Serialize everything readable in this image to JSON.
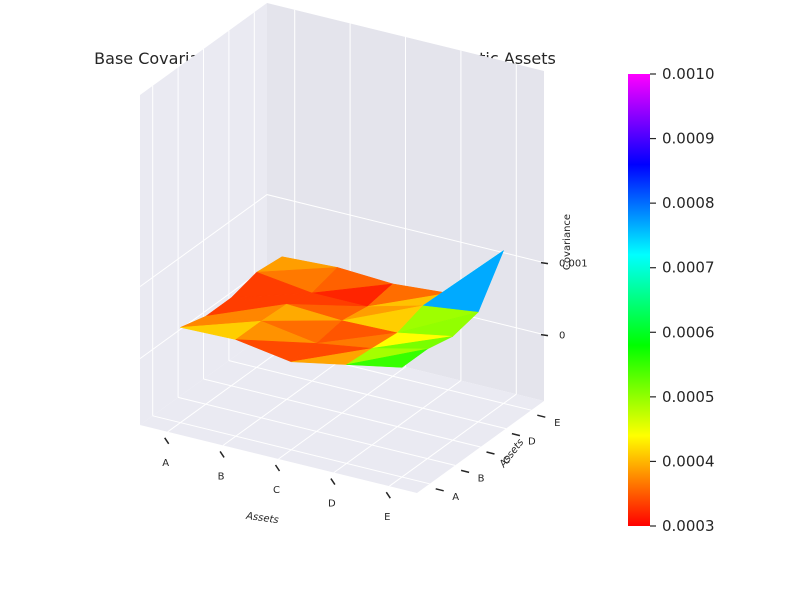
{
  "chart_data": {
    "type": "surface3d",
    "title": "Base Covariance Lasso Estimate for Five Synthetic Assets",
    "xlabel": "Assets",
    "ylabel": "Assets",
    "zlabel": "Covariance",
    "x_categories": [
      "A",
      "B",
      "C",
      "D",
      "E"
    ],
    "y_categories": [
      "A",
      "B",
      "C",
      "D",
      "E"
    ],
    "z_ticks": [
      "0",
      "0.001"
    ],
    "z_tick_values": [
      0,
      0.001
    ],
    "colormap": "hsv",
    "colorbar": {
      "min": 0.0003,
      "max": 0.001,
      "ticks": [
        "0.0003",
        "0.0004",
        "0.0005",
        "0.0006",
        "0.0007",
        "0.0008",
        "0.0009",
        "0.0010"
      ],
      "tick_values": [
        0.0003,
        0.0004,
        0.0005,
        0.0006,
        0.0007,
        0.0008,
        0.0009,
        0.001
      ]
    },
    "matrix": [
      [
        0.0004,
        0.00042,
        0.0003,
        0.00045,
        0.0006
      ],
      [
        0.0003,
        0.00042,
        0.0003,
        0.00042,
        0.0006
      ],
      [
        0.0003,
        0.0004,
        0.00036,
        0.00038,
        0.00052
      ],
      [
        0.0004,
        0.0003,
        0.0003,
        0.0005,
        0.0006
      ],
      [
        0.00036,
        0.0004,
        0.00036,
        0.00042,
        0.0012
      ]
    ],
    "pane_color": "#eaeaf2",
    "grid": true
  }
}
